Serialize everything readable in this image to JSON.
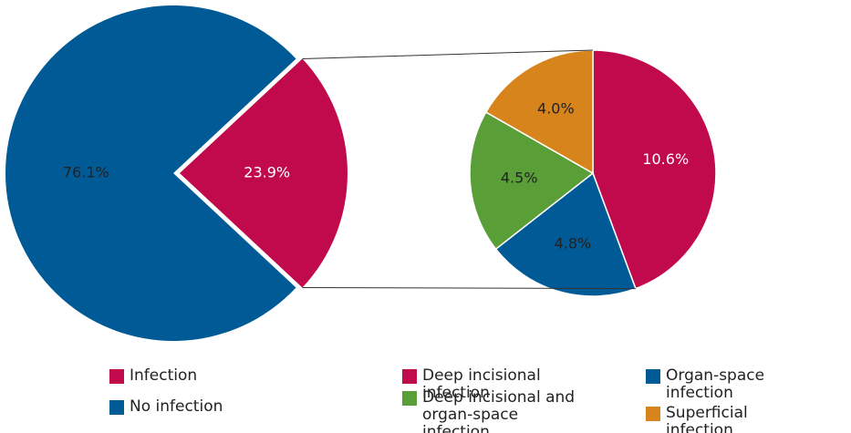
{
  "chart_data": [
    {
      "type": "pie",
      "categories": [
        "Infection",
        "No infection"
      ],
      "values": [
        23.9,
        76.1
      ],
      "value_labels": [
        "23.9%",
        "76.1%"
      ],
      "colors": [
        "#c10a4b",
        "#005a96"
      ]
    },
    {
      "type": "pie",
      "categories": [
        "Deep incisional infection",
        "Organ-space infection",
        "Deep incisional and organ-space infection",
        "Superficial infection"
      ],
      "values": [
        10.6,
        4.8,
        4.5,
        4.0
      ],
      "value_labels": [
        "10.6%",
        "4.8%",
        "4.5%",
        "4.0%"
      ],
      "colors": [
        "#c10a4b",
        "#005a96",
        "#5a9e38",
        "#d8841c"
      ]
    }
  ]
}
